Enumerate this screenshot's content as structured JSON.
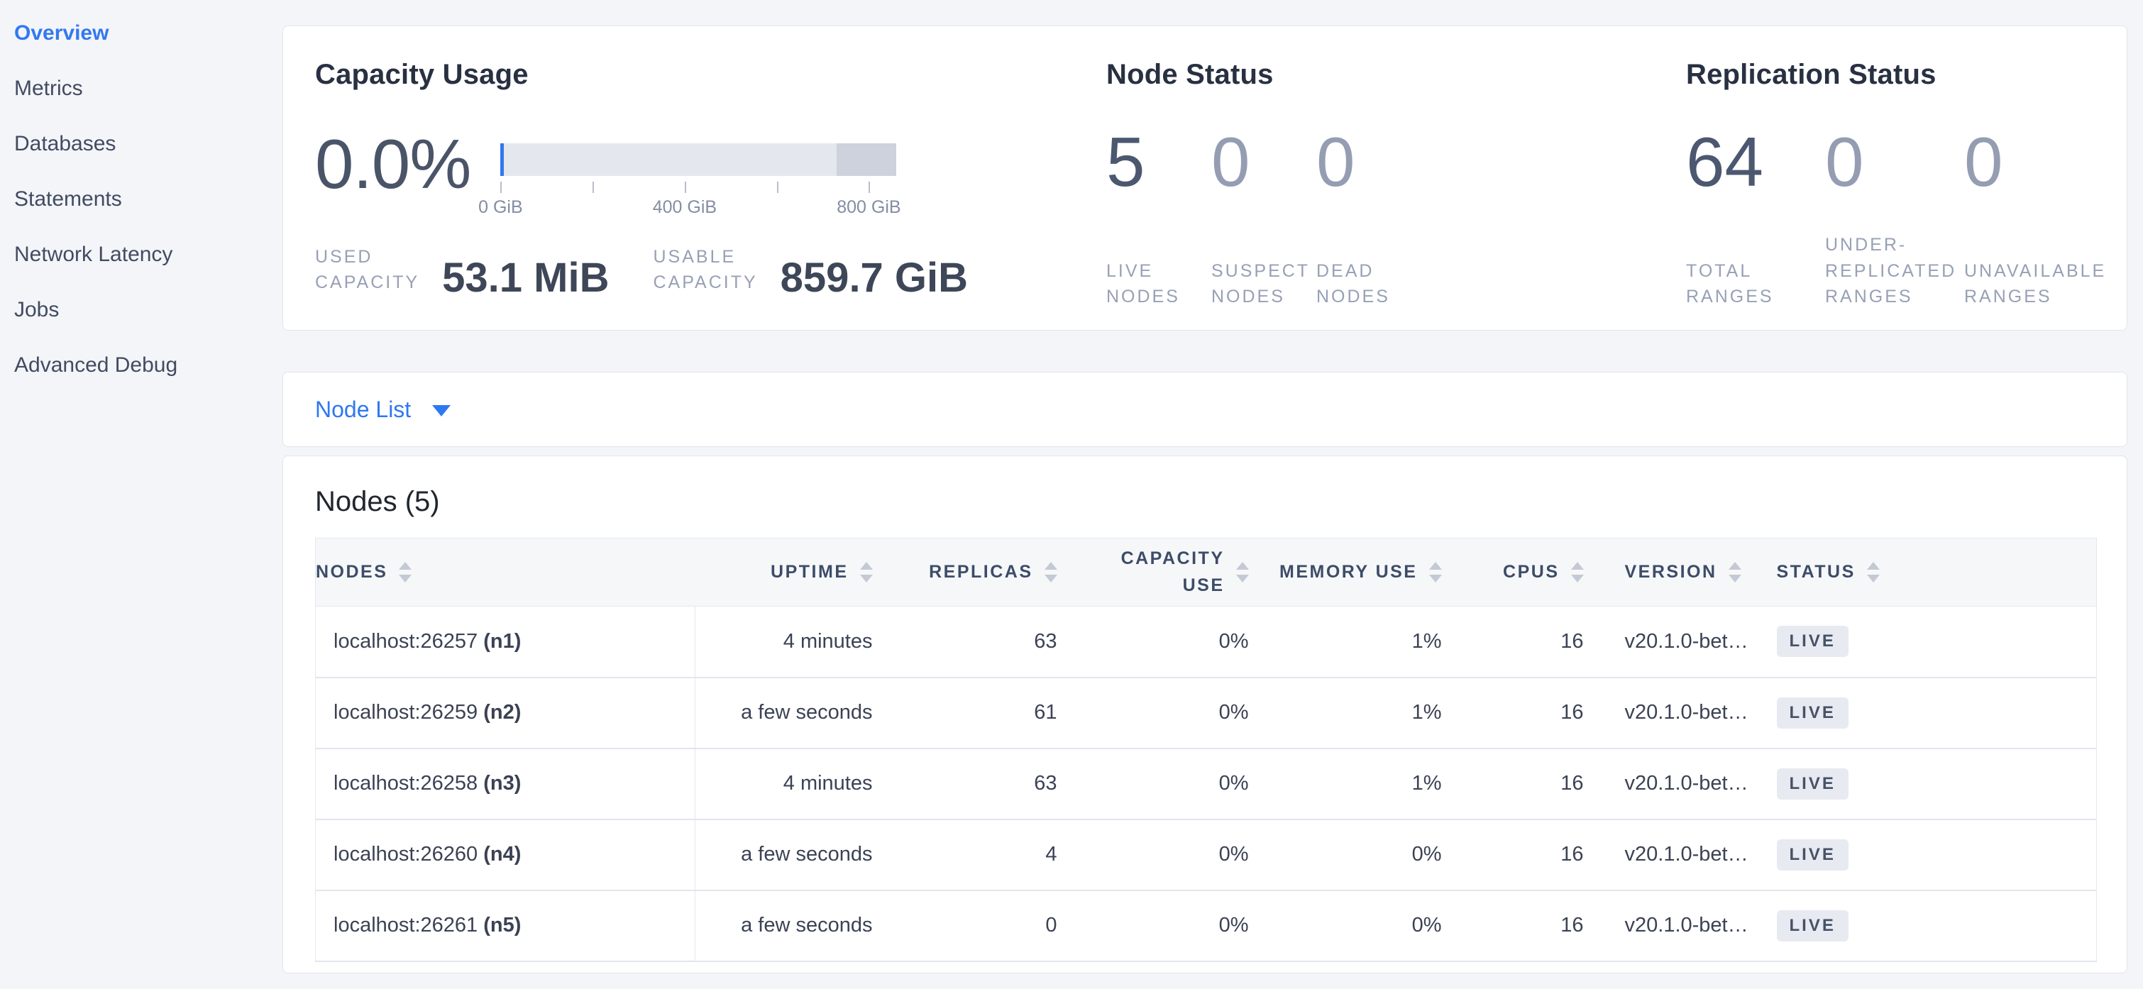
{
  "sidebar": {
    "items": [
      {
        "label": "Overview",
        "active": true
      },
      {
        "label": "Metrics",
        "active": false
      },
      {
        "label": "Databases",
        "active": false
      },
      {
        "label": "Statements",
        "active": false
      },
      {
        "label": "Network Latency",
        "active": false
      },
      {
        "label": "Jobs",
        "active": false
      },
      {
        "label": "Advanced Debug",
        "active": false
      }
    ]
  },
  "summary": {
    "capacity": {
      "title": "Capacity Usage",
      "percent": "0.0%",
      "axis_labels": [
        "0 GiB",
        "400 GiB",
        "800 GiB"
      ],
      "bar": {
        "total_gib": 860,
        "other_usage_from_gib": 730,
        "used_percent": 0
      },
      "used_label": "USED\nCAPACITY",
      "used_value": "53.1 MiB",
      "usable_label": "USABLE\nCAPACITY",
      "usable_value": "859.7 GiB"
    },
    "node_status": {
      "title": "Node Status",
      "stats": [
        {
          "value": "5",
          "label": "LIVE\nNODES"
        },
        {
          "value": "0",
          "label": "SUSPECT\nNODES"
        },
        {
          "value": "0",
          "label": "DEAD\nNODES"
        }
      ]
    },
    "replication_status": {
      "title": "Replication Status",
      "stats": [
        {
          "value": "64",
          "label": "TOTAL\nRANGES"
        },
        {
          "value": "0",
          "label": "UNDER-\nREPLICATED\nRANGES"
        },
        {
          "value": "0",
          "label": "UNAVAILABLE\nRANGES"
        }
      ]
    }
  },
  "node_list": {
    "label": "Node List"
  },
  "nodes_table": {
    "title": "Nodes (5)",
    "columns": [
      {
        "label": "NODES"
      },
      {
        "label": "UPTIME"
      },
      {
        "label": "REPLICAS"
      },
      {
        "label": "CAPACITY\nUSE"
      },
      {
        "label": "MEMORY USE"
      },
      {
        "label": "CPUS"
      },
      {
        "label": "VERSION"
      },
      {
        "label": "STATUS"
      }
    ],
    "rows": [
      {
        "address": "localhost:26257",
        "node_id": "(n1)",
        "uptime": "4 minutes",
        "replicas": "63",
        "capacity_use": "0%",
        "memory_use": "1%",
        "cpus": "16",
        "version": "v20.1.0-bet…",
        "status": "LIVE"
      },
      {
        "address": "localhost:26259",
        "node_id": "(n2)",
        "uptime": "a few seconds",
        "replicas": "61",
        "capacity_use": "0%",
        "memory_use": "1%",
        "cpus": "16",
        "version": "v20.1.0-bet…",
        "status": "LIVE"
      },
      {
        "address": "localhost:26258",
        "node_id": "(n3)",
        "uptime": "4 minutes",
        "replicas": "63",
        "capacity_use": "0%",
        "memory_use": "1%",
        "cpus": "16",
        "version": "v20.1.0-bet…",
        "status": "LIVE"
      },
      {
        "address": "localhost:26260",
        "node_id": "(n4)",
        "uptime": "a few seconds",
        "replicas": "4",
        "capacity_use": "0%",
        "memory_use": "0%",
        "cpus": "16",
        "version": "v20.1.0-bet…",
        "status": "LIVE"
      },
      {
        "address": "localhost:26261",
        "node_id": "(n5)",
        "uptime": "a few seconds",
        "replicas": "0",
        "capacity_use": "0%",
        "memory_use": "0%",
        "cpus": "16",
        "version": "v20.1.0-bet…",
        "status": "LIVE"
      }
    ]
  },
  "colors": {
    "accent_blue": "#3178f0",
    "badge_bg": "#e8eaf1",
    "bar_light": "#e5e7ee",
    "bar_dark": "#cdd2dd"
  }
}
